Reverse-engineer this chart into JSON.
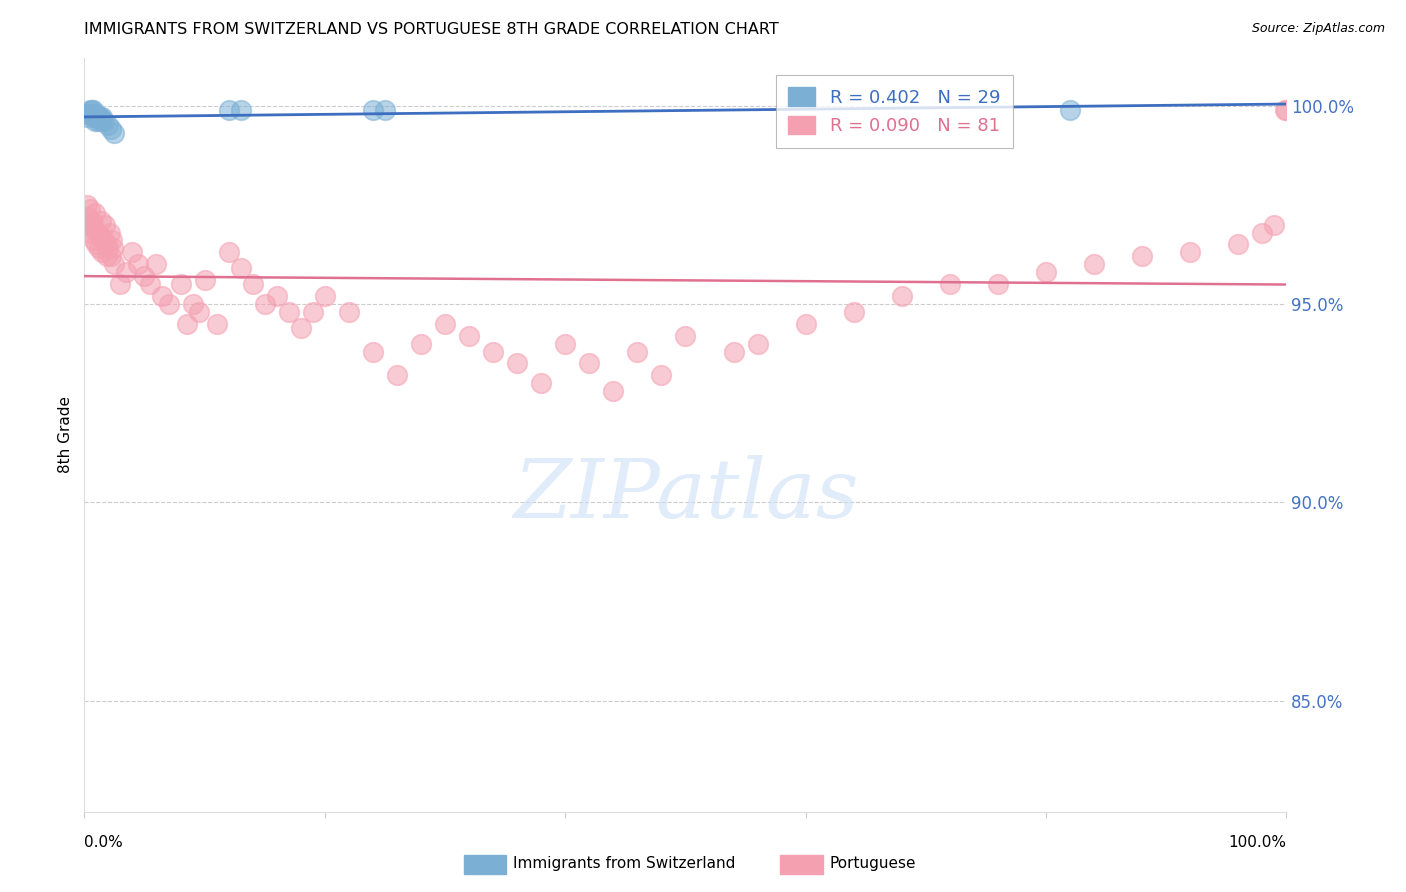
{
  "title": "IMMIGRANTS FROM SWITZERLAND VS PORTUGUESE 8TH GRADE CORRELATION CHART",
  "source": "Source: ZipAtlas.com",
  "ylabel": "8th Grade",
  "ytick_labels": [
    "100.0%",
    "95.0%",
    "90.0%",
    "85.0%"
  ],
  "ytick_values": [
    1.0,
    0.95,
    0.9,
    0.85
  ],
  "xmin": 0.0,
  "xmax": 1.0,
  "ymin": 0.822,
  "ymax": 1.012,
  "legend_blue_R": "0.402",
  "legend_blue_N": "29",
  "legend_pink_R": "0.090",
  "legend_pink_N": "81",
  "blue_scatter_color": "#7bafd4",
  "pink_scatter_color": "#f4a0b0",
  "blue_line_color": "#3d6ebf",
  "pink_line_color": "#e07090",
  "background_color": "#ffffff",
  "grid_color": "#cccccc",
  "blue_scatter_x": [
    0.002,
    0.003,
    0.004,
    0.005,
    0.006,
    0.006,
    0.007,
    0.007,
    0.007,
    0.008,
    0.008,
    0.009,
    0.009,
    0.01,
    0.01,
    0.011,
    0.012,
    0.013,
    0.014,
    0.015,
    0.016,
    0.02,
    0.022,
    0.025,
    0.12,
    0.13,
    0.24,
    0.25,
    0.82
  ],
  "blue_scatter_y": [
    0.997,
    0.998,
    0.998,
    0.999,
    0.998,
    0.999,
    0.998,
    0.998,
    0.999,
    0.997,
    0.998,
    0.996,
    0.997,
    0.998,
    0.997,
    0.996,
    0.997,
    0.997,
    0.996,
    0.997,
    0.996,
    0.995,
    0.994,
    0.993,
    0.999,
    0.999,
    0.999,
    0.999,
    0.999
  ],
  "pink_scatter_x": [
    0.002,
    0.003,
    0.004,
    0.005,
    0.005,
    0.006,
    0.007,
    0.008,
    0.008,
    0.009,
    0.01,
    0.011,
    0.012,
    0.013,
    0.014,
    0.015,
    0.016,
    0.017,
    0.018,
    0.019,
    0.02,
    0.021,
    0.022,
    0.023,
    0.024,
    0.025,
    0.03,
    0.035,
    0.04,
    0.045,
    0.05,
    0.055,
    0.06,
    0.065,
    0.07,
    0.08,
    0.085,
    0.09,
    0.095,
    0.1,
    0.11,
    0.12,
    0.13,
    0.14,
    0.15,
    0.16,
    0.17,
    0.18,
    0.19,
    0.2,
    0.22,
    0.24,
    0.26,
    0.28,
    0.3,
    0.32,
    0.34,
    0.36,
    0.38,
    0.4,
    0.42,
    0.44,
    0.46,
    0.48,
    0.5,
    0.54,
    0.56,
    0.6,
    0.64,
    0.68,
    0.72,
    0.76,
    0.8,
    0.84,
    0.88,
    0.92,
    0.96,
    0.98,
    0.99,
    0.999,
    1.0
  ],
  "pink_scatter_y": [
    0.975,
    0.972,
    0.97,
    0.968,
    0.974,
    0.971,
    0.97,
    0.966,
    0.969,
    0.973,
    0.965,
    0.968,
    0.964,
    0.967,
    0.971,
    0.963,
    0.966,
    0.97,
    0.965,
    0.962,
    0.964,
    0.968,
    0.962,
    0.966,
    0.964,
    0.96,
    0.955,
    0.958,
    0.963,
    0.96,
    0.957,
    0.955,
    0.96,
    0.952,
    0.95,
    0.955,
    0.945,
    0.95,
    0.948,
    0.956,
    0.945,
    0.963,
    0.959,
    0.955,
    0.95,
    0.952,
    0.948,
    0.944,
    0.948,
    0.952,
    0.948,
    0.938,
    0.932,
    0.94,
    0.945,
    0.942,
    0.938,
    0.935,
    0.93,
    0.94,
    0.935,
    0.928,
    0.938,
    0.932,
    0.942,
    0.938,
    0.94,
    0.945,
    0.948,
    0.952,
    0.955,
    0.955,
    0.958,
    0.96,
    0.962,
    0.963,
    0.965,
    0.968,
    0.97,
    0.999,
    0.999
  ]
}
